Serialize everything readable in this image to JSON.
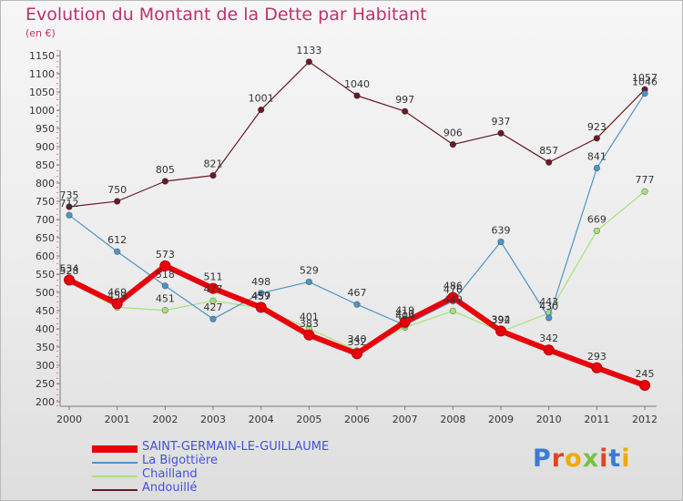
{
  "title": "Evolution du Montant de la Dette par Habitant",
  "unit": "(en €)",
  "logo": "Proxiti",
  "chart_data": {
    "type": "line",
    "x": [
      "2000",
      "2001",
      "2002",
      "2003",
      "2004",
      "2005",
      "2006",
      "2007",
      "2008",
      "2009",
      "2010",
      "2011",
      "2012"
    ],
    "ylim": [
      200,
      1150
    ],
    "yticks": [
      200,
      250,
      300,
      350,
      400,
      450,
      500,
      550,
      600,
      650,
      700,
      750,
      800,
      850,
      900,
      950,
      1000,
      1050,
      1100,
      1150
    ],
    "grid": false,
    "legend_position": "bottom-left",
    "series": [
      {
        "name": "Andouillé",
        "color": "#6b1a24",
        "width": 1.2,
        "values": [
          735,
          750,
          805,
          821,
          1001,
          1133,
          1040,
          997,
          906,
          937,
          857,
          923,
          1057
        ]
      },
      {
        "name": "Chailland",
        "color": "#a6e27a",
        "width": 1.2,
        "values": [
          528,
          459,
          451,
          477,
          457,
          401,
          340,
          404,
          449,
          392,
          443,
          669,
          777
        ]
      },
      {
        "name": "La Bigottière",
        "color": "#4d95c6",
        "width": 1.2,
        "values": [
          712,
          612,
          518,
          427,
          498,
          529,
          467,
          410,
          476,
          639,
          430,
          841,
          1046
        ]
      },
      {
        "name": "SAINT-GERMAIN-LE-GUILLAUME",
        "color": "#e8000b",
        "width": 6,
        "values": [
          534,
          469,
          573,
          511,
          459,
          383,
          332,
          419,
          486,
          394,
          342,
          293,
          245
        ]
      }
    ]
  }
}
